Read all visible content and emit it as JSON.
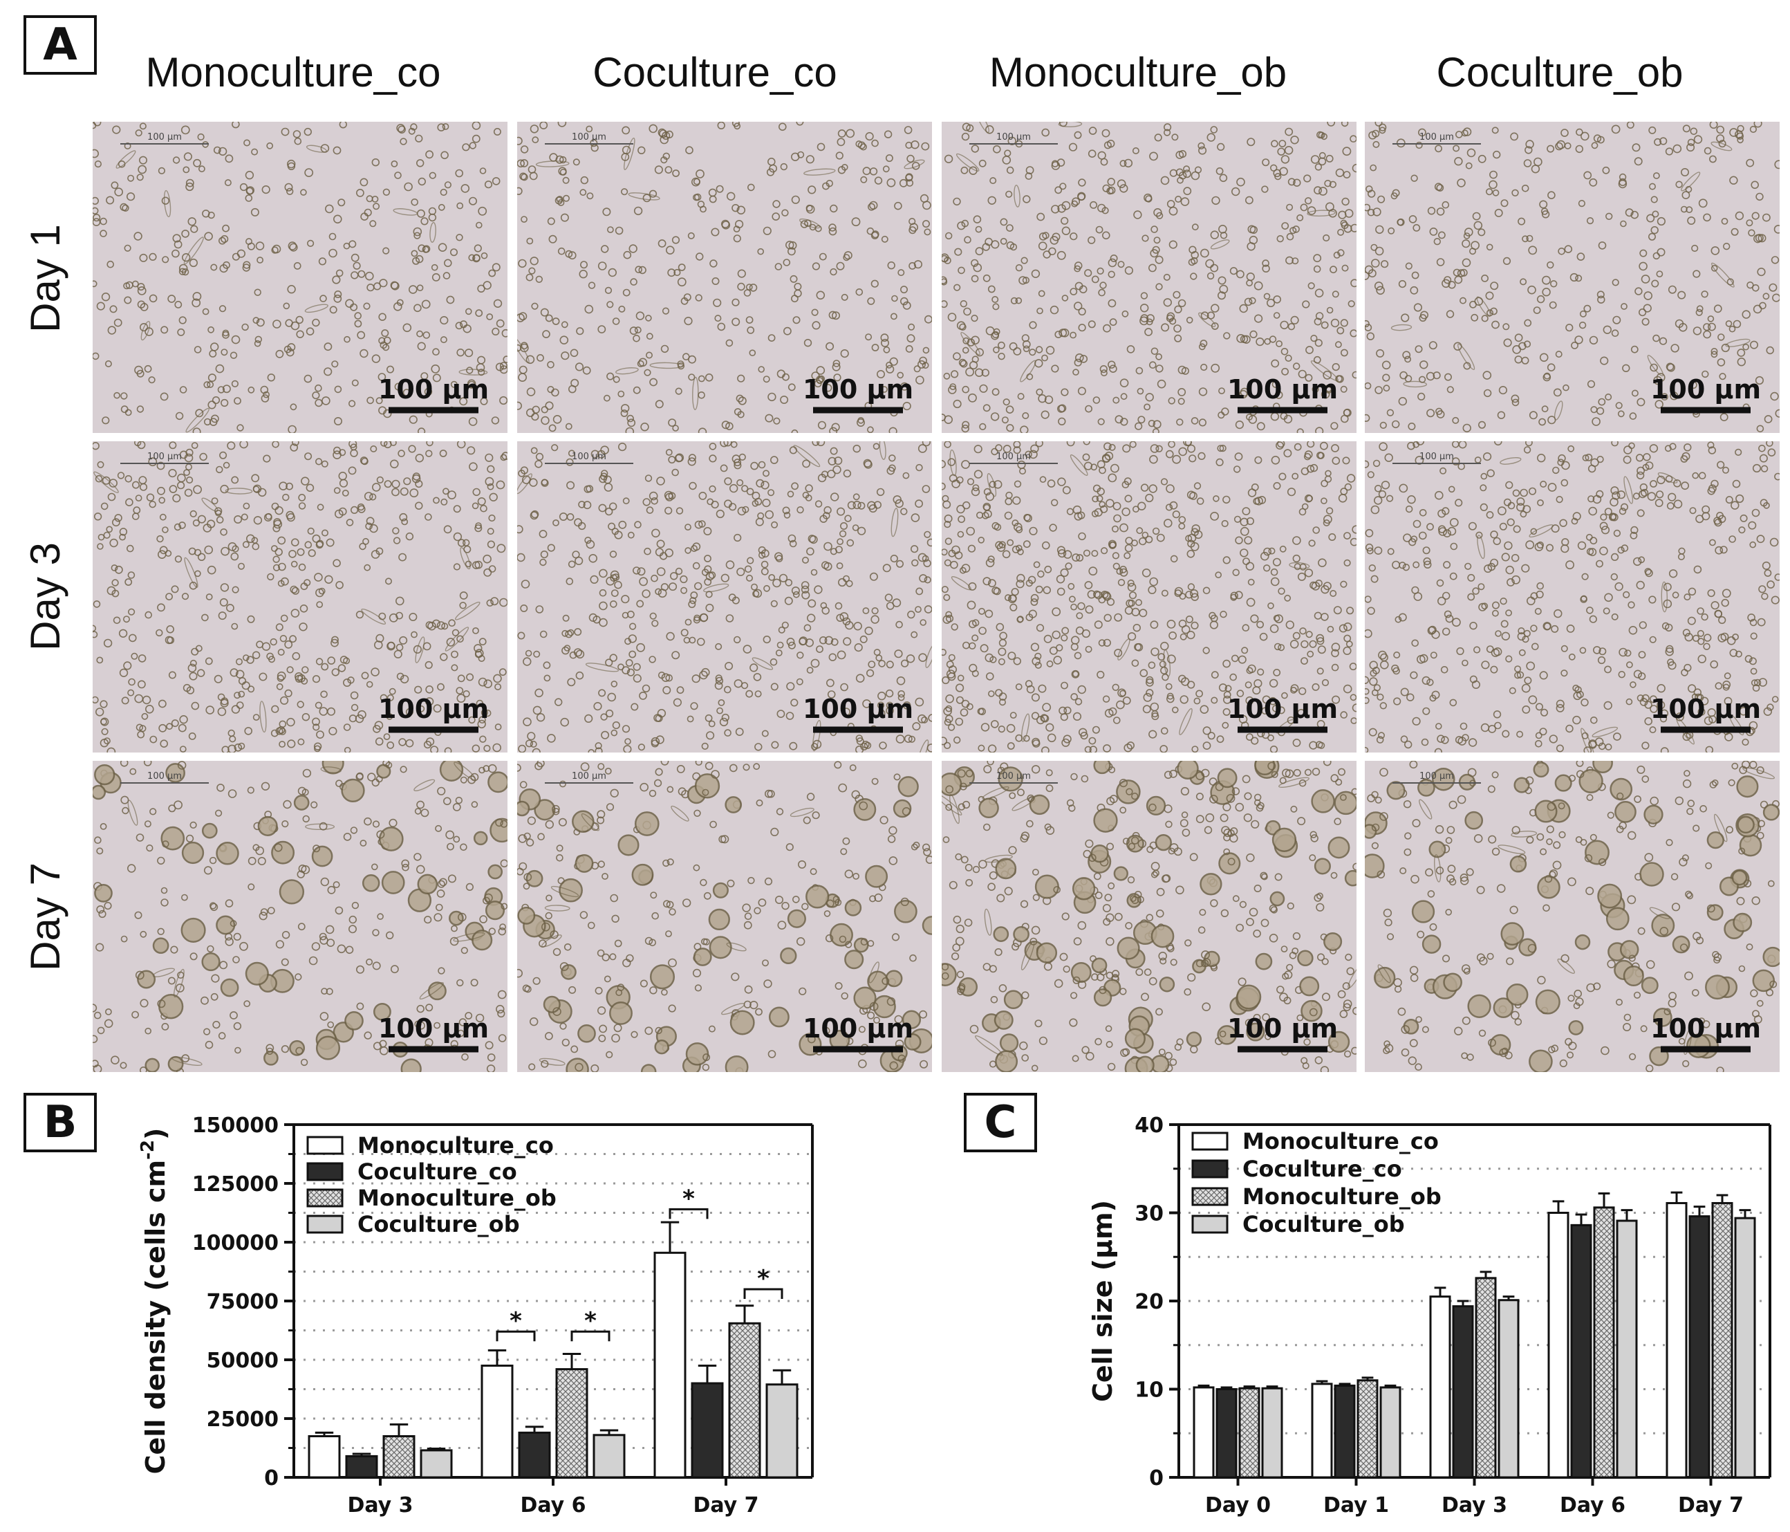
{
  "panel_labels": [
    "A",
    "B",
    "C"
  ],
  "micrographs": {
    "columns": [
      "Monoculture_co",
      "Coculture_co",
      "Monoculture_ob",
      "Coculture_ob"
    ],
    "rows": [
      "Day 1",
      "Day 3",
      "Day 7"
    ],
    "scale_bar_label": "100 µm",
    "small_scale_label": "100 µm",
    "background_color": "#d8cfd3",
    "cell_color": "#6e6248"
  },
  "chart_data": [
    {
      "type": "bar",
      "panel": "B",
      "categories": [
        "Day 3",
        "Day 6",
        "Day 7"
      ],
      "ylabel": "Cell density (cells cm",
      "ylabel_exp": "-2",
      "ylabel_close": ")",
      "ylim": [
        0,
        150000
      ],
      "yticks": [
        "0",
        "25000",
        "50000",
        "75000",
        "100000",
        "125000",
        "150000"
      ],
      "grid": "dotted horizontal",
      "legend_position": "top-left",
      "series": [
        {
          "name": "Monoculture_co",
          "values": [
            17500,
            47500,
            95500
          ],
          "errors": [
            1500,
            6500,
            13000
          ]
        },
        {
          "name": "Coculture_co",
          "values": [
            9000,
            19000,
            40000
          ],
          "errors": [
            1000,
            2500,
            7500
          ]
        },
        {
          "name": "Monoculture_ob",
          "values": [
            17500,
            46000,
            65500
          ],
          "errors": [
            5000,
            6500,
            7500
          ]
        },
        {
          "name": "Coculture_ob",
          "values": [
            11500,
            18000,
            39500
          ],
          "errors": [
            700,
            2000,
            6000
          ]
        }
      ],
      "significance": [
        {
          "category": 1,
          "from": 0,
          "to": 1,
          "y": 62000,
          "label": "*"
        },
        {
          "category": 1,
          "from": 2,
          "to": 3,
          "y": 62000,
          "label": "*"
        },
        {
          "category": 2,
          "from": 0,
          "to": 1,
          "y": 114000,
          "label": "*"
        },
        {
          "category": 2,
          "from": 2,
          "to": 3,
          "y": 80000,
          "label": "*"
        }
      ]
    },
    {
      "type": "bar",
      "panel": "C",
      "categories": [
        "Day 0",
        "Day 1",
        "Day 3",
        "Day 6",
        "Day 7"
      ],
      "ylabel": "Cell size (µm)",
      "ylim": [
        0,
        40
      ],
      "yticks": [
        "0",
        "10",
        "20",
        "30",
        "40"
      ],
      "grid": "dotted horizontal",
      "legend_position": "top-left",
      "series": [
        {
          "name": "Monoculture_co",
          "values": [
            10.2,
            10.6,
            20.5,
            30.0,
            31.1
          ],
          "errors": [
            0.2,
            0.3,
            1.0,
            1.3,
            1.2
          ]
        },
        {
          "name": "Coculture_co",
          "values": [
            10.0,
            10.4,
            19.4,
            28.6,
            29.6
          ],
          "errors": [
            0.2,
            0.2,
            0.6,
            1.2,
            1.1
          ]
        },
        {
          "name": "Monoculture_ob",
          "values": [
            10.1,
            11.0,
            22.6,
            30.6,
            31.1
          ],
          "errors": [
            0.2,
            0.3,
            0.7,
            1.6,
            0.9
          ]
        },
        {
          "name": "Coculture_ob",
          "values": [
            10.1,
            10.2,
            20.1,
            29.1,
            29.4
          ],
          "errors": [
            0.2,
            0.2,
            0.4,
            1.2,
            0.9
          ]
        }
      ]
    }
  ]
}
